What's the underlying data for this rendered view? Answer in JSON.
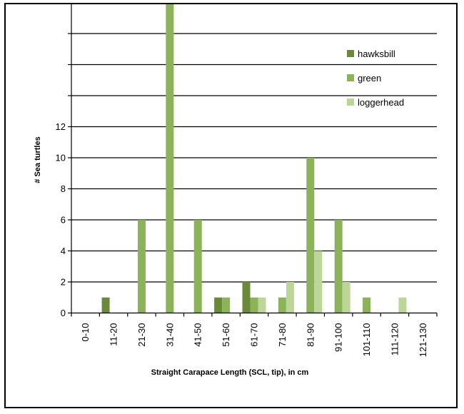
{
  "chart_data": {
    "type": "bar",
    "categories": [
      "0-10",
      "11-20",
      "21-30",
      "31-40",
      "41-50",
      "51-60",
      "61-70",
      "71-80",
      "81-90",
      "91-100",
      "101-110",
      "111-120",
      "121-130"
    ],
    "series": [
      {
        "name": "hawksbill",
        "color": "#6a8a3a",
        "values": [
          0,
          1,
          0,
          0,
          0,
          1,
          2,
          0,
          0,
          0,
          0,
          0,
          0
        ]
      },
      {
        "name": "green",
        "color": "#8db35a",
        "values": [
          0,
          0,
          6,
          21,
          6,
          1,
          1,
          1,
          10,
          6,
          1,
          0,
          0
        ]
      },
      {
        "name": "loggerhead",
        "color": "#bcd69a",
        "values": [
          0,
          0,
          0,
          0,
          0,
          0,
          1,
          2,
          4,
          2,
          0,
          1,
          0
        ]
      }
    ],
    "xlabel": "Straight Carapace Length (SCL, tip), in cm",
    "ylabel": "# Sea turtles",
    "ylim": [
      0,
      22
    ],
    "yticks": [
      0,
      2,
      4,
      6,
      8,
      10,
      12
    ],
    "grid": true,
    "legend_position": "top-right"
  }
}
